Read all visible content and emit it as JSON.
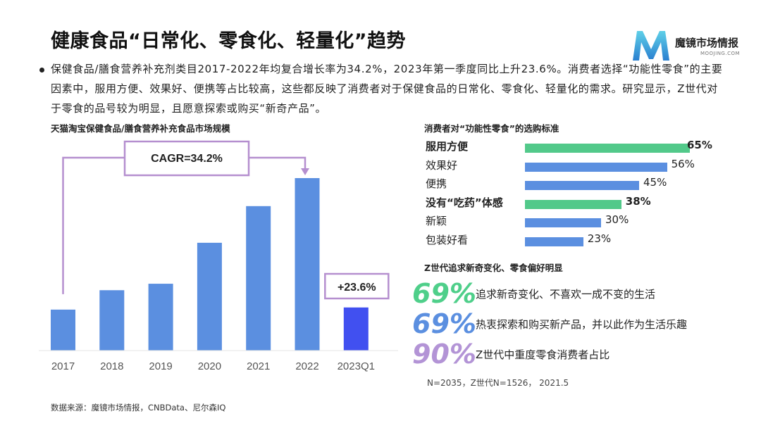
{
  "title": "健康食品“日常化、零食化、轻量化”趋势",
  "logo": {
    "name": "魔镜市场情报",
    "sub": "MOOJING.COM"
  },
  "intro": "保健食品/膳食营养补充剂类目2017-2022年均复合增长率为34.2%，2023年第一季度同比上升23.6%。消费者选择“功能性零食”的主要因素中，服用方便、效果好、便携等占比较高，这些都反映了消费者对于保健食品的日常化、零食化、轻量化的需求。研究显示，Z世代对于零食的品号较为明显，且愿意探索或购买“新奇产品”。",
  "left_chart_title": "天猫淘宝保健食品/膳食营养补充食品市场规模",
  "factors_title": "消费者对“功能性零食”的选购标准",
  "genz_title": "Z世代追求新奇变化、零食偏好明显",
  "chart_data": [
    {
      "type": "bar",
      "title": "天猫淘宝保健食品/膳食营养补充食品市场规模",
      "categories": [
        "2017",
        "2018",
        "2019",
        "2020",
        "2021",
        "2022",
        "2023Q1"
      ],
      "values": [
        19,
        28,
        31,
        50,
        67,
        80,
        20
      ],
      "highlight_index": 6,
      "annotations": [
        "CAGR=34.2%",
        "+23.6%"
      ],
      "colors": {
        "bar": "#5b8fe0",
        "highlight": "#4150f0",
        "bracket": "#b58fcf"
      }
    },
    {
      "type": "bar",
      "orientation": "horizontal",
      "title": "消费者对“功能性零食”的选购标准",
      "categories": [
        "服用方便",
        "效果好",
        "便携",
        "没有“吃药”体感",
        "新颖",
        "包装好看"
      ],
      "values": [
        65,
        56,
        45,
        38,
        30,
        23
      ],
      "value_labels": [
        "65%",
        "56%",
        "45%",
        "38%",
        "30%",
        "23%"
      ],
      "highlighted": [
        true,
        false,
        false,
        true,
        false,
        false
      ],
      "colors": {
        "bar": "#5b8fe0",
        "highlight": "#52c98a"
      }
    }
  ],
  "genz_stats": [
    {
      "pct": "69%",
      "text": "追求新奇变化、不喜欢一成不变的生活",
      "color": "#4fcf8a"
    },
    {
      "pct": "69%",
      "text": "热衷探索和购买新产品，并以此作为生活乐趣",
      "color": "#5b8fe0"
    },
    {
      "pct": "90%",
      "text": "Z世代中重度零食消费者占比",
      "color": "#b394d6"
    }
  ],
  "sample_note": "N=2035，Z世代N=1526， 2021.5",
  "source": "数据来源：魔镜市场情报，CNBData、尼尔森IQ"
}
